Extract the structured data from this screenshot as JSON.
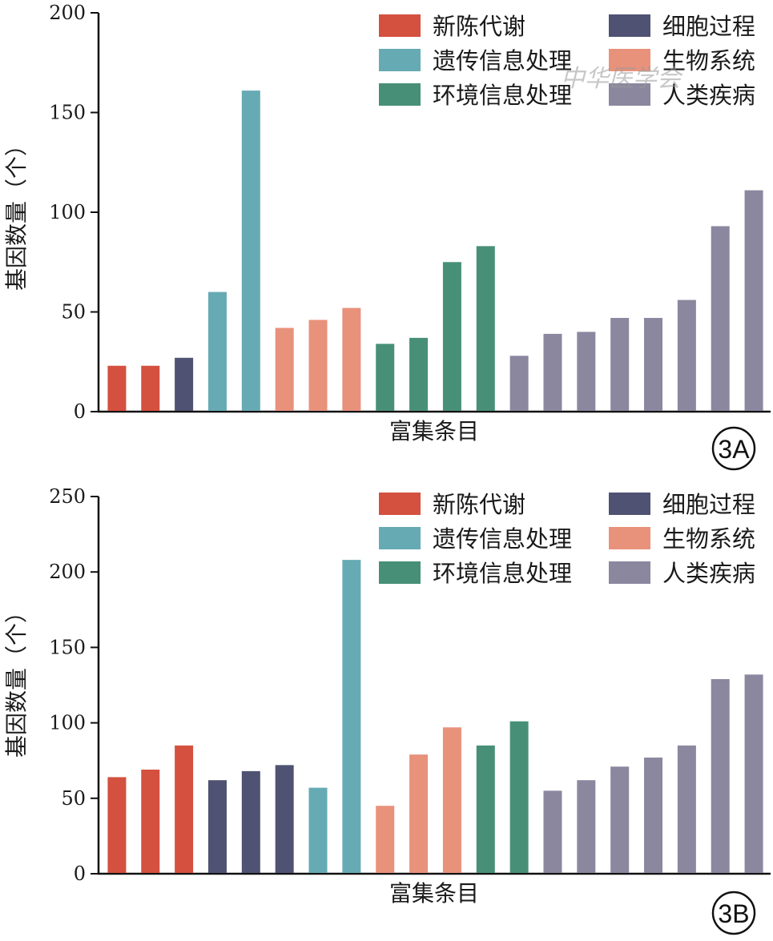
{
  "watermark": {
    "text": "中华医学会"
  },
  "chart_data": [
    {
      "type": "bar",
      "panel_label": "3A",
      "ylabel": "基因数量（个）",
      "xlabel": "富集条目",
      "ylim": [
        0,
        200
      ],
      "yticks": [
        "0",
        "50",
        "100",
        "150",
        "200"
      ],
      "legend_placement": "top-right",
      "legend": [
        {
          "name": "新陈代谢",
          "color": "#d4503f"
        },
        {
          "name": "细胞过程",
          "color": "#4f5272"
        },
        {
          "name": "遗传信息处理",
          "color": "#66aab4"
        },
        {
          "name": "生物系统",
          "color": "#e8917b"
        },
        {
          "name": "环境信息处理",
          "color": "#479077"
        },
        {
          "name": "人类疾病",
          "color": "#8a879f"
        }
      ],
      "bars": [
        {
          "group": 0,
          "value": 23
        },
        {
          "group": 0,
          "value": 23
        },
        {
          "group": 1,
          "value": 27
        },
        {
          "group": 2,
          "value": 60
        },
        {
          "group": 2,
          "value": 161
        },
        {
          "group": 3,
          "value": 42
        },
        {
          "group": 3,
          "value": 46
        },
        {
          "group": 3,
          "value": 52
        },
        {
          "group": 4,
          "value": 34
        },
        {
          "group": 4,
          "value": 37
        },
        {
          "group": 4,
          "value": 75
        },
        {
          "group": 4,
          "value": 83
        },
        {
          "group": 5,
          "value": 28
        },
        {
          "group": 5,
          "value": 39
        },
        {
          "group": 5,
          "value": 40
        },
        {
          "group": 5,
          "value": 47
        },
        {
          "group": 5,
          "value": 47
        },
        {
          "group": 5,
          "value": 56
        },
        {
          "group": 5,
          "value": 93
        },
        {
          "group": 5,
          "value": 111
        }
      ]
    },
    {
      "type": "bar",
      "panel_label": "3B",
      "ylabel": "基因数量（个）",
      "xlabel": "富集条目",
      "ylim": [
        0,
        250
      ],
      "yticks": [
        "0",
        "50",
        "100",
        "150",
        "200",
        "250"
      ],
      "legend_placement": "top-right",
      "legend": [
        {
          "name": "新陈代谢",
          "color": "#d4503f"
        },
        {
          "name": "细胞过程",
          "color": "#4f5272"
        },
        {
          "name": "遗传信息处理",
          "color": "#66aab4"
        },
        {
          "name": "生物系统",
          "color": "#e8917b"
        },
        {
          "name": "环境信息处理",
          "color": "#479077"
        },
        {
          "name": "人类疾病",
          "color": "#8a879f"
        }
      ],
      "bars": [
        {
          "group": 0,
          "value": 64
        },
        {
          "group": 0,
          "value": 69
        },
        {
          "group": 0,
          "value": 85
        },
        {
          "group": 1,
          "value": 62
        },
        {
          "group": 1,
          "value": 68
        },
        {
          "group": 1,
          "value": 72
        },
        {
          "group": 2,
          "value": 57
        },
        {
          "group": 2,
          "value": 208
        },
        {
          "group": 3,
          "value": 45
        },
        {
          "group": 3,
          "value": 79
        },
        {
          "group": 3,
          "value": 97
        },
        {
          "group": 4,
          "value": 85
        },
        {
          "group": 4,
          "value": 101
        },
        {
          "group": 5,
          "value": 55
        },
        {
          "group": 5,
          "value": 62
        },
        {
          "group": 5,
          "value": 71
        },
        {
          "group": 5,
          "value": 77
        },
        {
          "group": 5,
          "value": 85
        },
        {
          "group": 5,
          "value": 129
        },
        {
          "group": 5,
          "value": 132
        }
      ]
    }
  ]
}
